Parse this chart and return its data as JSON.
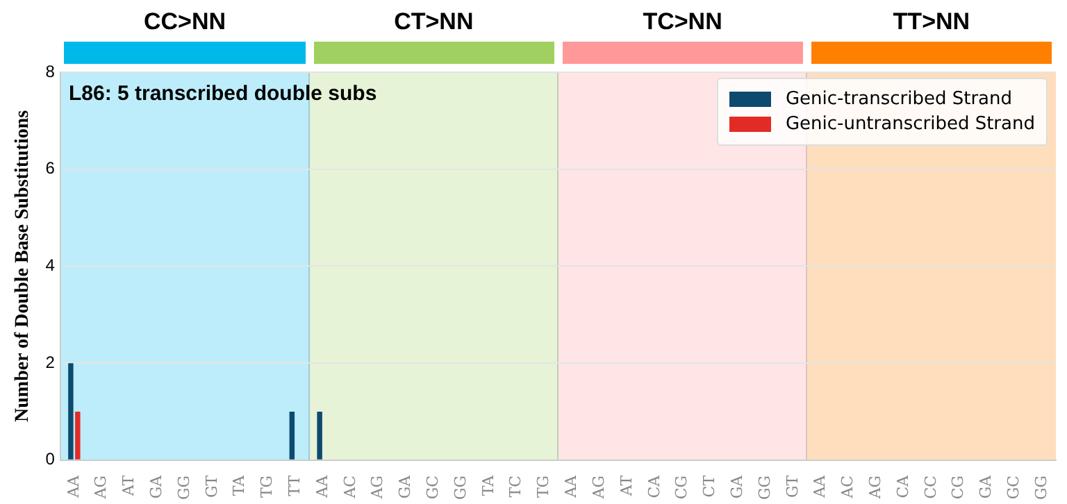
{
  "chart_data": {
    "type": "bar",
    "title": "L86: 5 transcribed double subs",
    "ylabel": "Number of Double Base Substitutions",
    "categories": [
      "AA",
      "AG",
      "AT",
      "GA",
      "GG",
      "GT",
      "TA",
      "TG",
      "TT",
      "AA",
      "AC",
      "AG",
      "GA",
      "GC",
      "GG",
      "TA",
      "TC",
      "TG",
      "AA",
      "AG",
      "AT",
      "CA",
      "CG",
      "CT",
      "GA",
      "GG",
      "GT",
      "AA",
      "AC",
      "AG",
      "CA",
      "CC",
      "CG",
      "GA",
      "GC",
      "GG"
    ],
    "series": [
      {
        "name": "Genic-transcribed Strand",
        "color": "#0c4a6e",
        "values": [
          2,
          0,
          0,
          0,
          0,
          0,
          0,
          0,
          1,
          1,
          0,
          0,
          0,
          0,
          0,
          0,
          0,
          0,
          0,
          0,
          0,
          0,
          0,
          0,
          0,
          0,
          0,
          0,
          0,
          0,
          0,
          0,
          0,
          0,
          0,
          0
        ]
      },
      {
        "name": "Genic-untranscribed Strand",
        "color": "#e32b26",
        "values": [
          1,
          0,
          0,
          0,
          0,
          0,
          0,
          0,
          0,
          0,
          0,
          0,
          0,
          0,
          0,
          0,
          0,
          0,
          0,
          0,
          0,
          0,
          0,
          0,
          0,
          0,
          0,
          0,
          0,
          0,
          0,
          0,
          0,
          0,
          0,
          0
        ]
      }
    ],
    "ylim": [
      0,
      8
    ],
    "yticks": [
      0,
      2,
      4,
      6,
      8
    ],
    "grid": "y",
    "legend": "top right",
    "annotations": [
      "CC>NN",
      "CT>NN",
      "TC>NN",
      "TT>NN"
    ]
  }
}
